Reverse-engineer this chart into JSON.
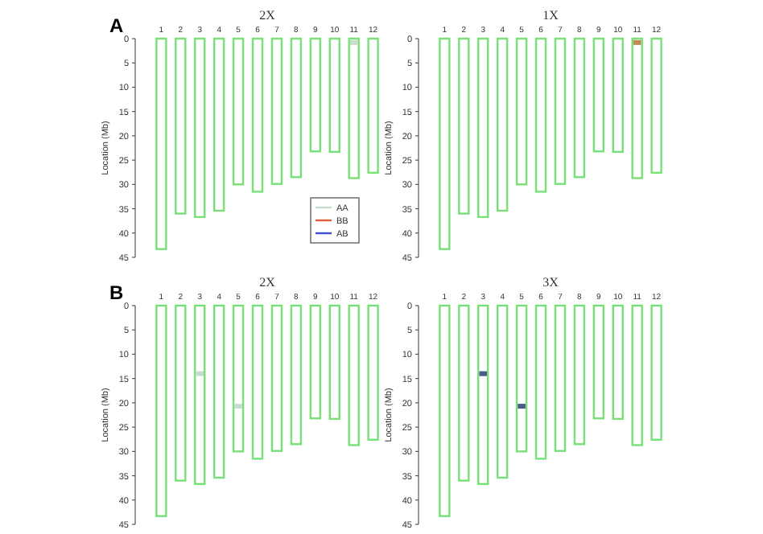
{
  "chart_data": [
    {
      "type": "bar",
      "title": "2X",
      "ylabel": "Location (Mb)",
      "annotations": [
        "A"
      ],
      "categories": [
        "1",
        "2",
        "3",
        "4",
        "5",
        "6",
        "7",
        "8",
        "9",
        "10",
        "11",
        "12"
      ],
      "ylim": [
        45,
        0
      ],
      "yticks": [
        0,
        5,
        10,
        15,
        20,
        25,
        30,
        35,
        40,
        45
      ],
      "legend": "bottom right",
      "series": [
        {
          "color": "#77e077",
          "values": [
            43.3,
            36,
            36.7,
            35.4,
            30,
            31.5,
            29.9,
            28.5,
            23.2,
            23.3,
            28.7,
            27.6
          ]
        },
        {
          "name": "AA",
          "type": "scatter",
          "color": "#c8dccb",
          "values": [
            null,
            null,
            null,
            null,
            null,
            null,
            null,
            null,
            null,
            null,
            0.8,
            null
          ]
        },
        {
          "name": "BB",
          "type": "scatter",
          "color": "#e0603a",
          "values": [
            null,
            null,
            null,
            null,
            null,
            null,
            null,
            null,
            null,
            null,
            null,
            null
          ]
        },
        {
          "name": "AB",
          "type": "scatter",
          "color": "#4050d0",
          "values": [
            null,
            null,
            null,
            null,
            null,
            null,
            null,
            null,
            null,
            null,
            null,
            null
          ]
        }
      ]
    },
    {
      "type": "bar",
      "title": "1X",
      "ylabel": "Location (Mb)",
      "categories": [
        "1",
        "2",
        "3",
        "4",
        "5",
        "6",
        "7",
        "8",
        "9",
        "10",
        "11",
        "12"
      ],
      "ylim": [
        45,
        0
      ],
      "yticks": [
        0,
        5,
        10,
        15,
        20,
        25,
        30,
        35,
        40,
        45
      ],
      "series": [
        {
          "color": "#77e077",
          "values": [
            43.3,
            36,
            36.7,
            35.4,
            30,
            31.5,
            29.9,
            28.5,
            23.2,
            23.3,
            28.7,
            27.6
          ]
        },
        {
          "type": "scatter",
          "color": "#c08a50",
          "values": [
            null,
            null,
            null,
            null,
            null,
            null,
            null,
            null,
            null,
            null,
            0.8,
            null
          ]
        }
      ]
    },
    {
      "type": "bar",
      "title": "2X",
      "ylabel": "Location (Mb)",
      "annotations": [
        "B"
      ],
      "categories": [
        "1",
        "2",
        "3",
        "4",
        "5",
        "6",
        "7",
        "8",
        "9",
        "10",
        "11",
        "12"
      ],
      "ylim": [
        45,
        0
      ],
      "yticks": [
        0,
        5,
        10,
        15,
        20,
        25,
        30,
        35,
        40,
        45
      ],
      "series": [
        {
          "color": "#77e077",
          "values": [
            43.3,
            36,
            36.7,
            35.4,
            30,
            31.5,
            29.9,
            28.5,
            23.2,
            23.3,
            28.7,
            27.6
          ]
        },
        {
          "type": "scatter",
          "color": "#c8dccb",
          "values": [
            null,
            null,
            14,
            null,
            20.7,
            null,
            null,
            null,
            null,
            null,
            null,
            null
          ]
        }
      ]
    },
    {
      "type": "bar",
      "title": "3X",
      "ylabel": "Location (Mb)",
      "categories": [
        "1",
        "2",
        "3",
        "4",
        "5",
        "6",
        "7",
        "8",
        "9",
        "10",
        "11",
        "12"
      ],
      "ylim": [
        45,
        0
      ],
      "yticks": [
        0,
        5,
        10,
        15,
        20,
        25,
        30,
        35,
        40,
        45
      ],
      "series": [
        {
          "color": "#77e077",
          "values": [
            43.3,
            36,
            36.7,
            35.4,
            30,
            31.5,
            29.9,
            28.5,
            23.2,
            23.3,
            28.7,
            27.6
          ]
        },
        {
          "type": "scatter",
          "color": "#4a5a8a",
          "values": [
            null,
            null,
            14,
            null,
            20.7,
            null,
            null,
            null,
            null,
            null,
            null,
            null
          ]
        }
      ]
    }
  ]
}
